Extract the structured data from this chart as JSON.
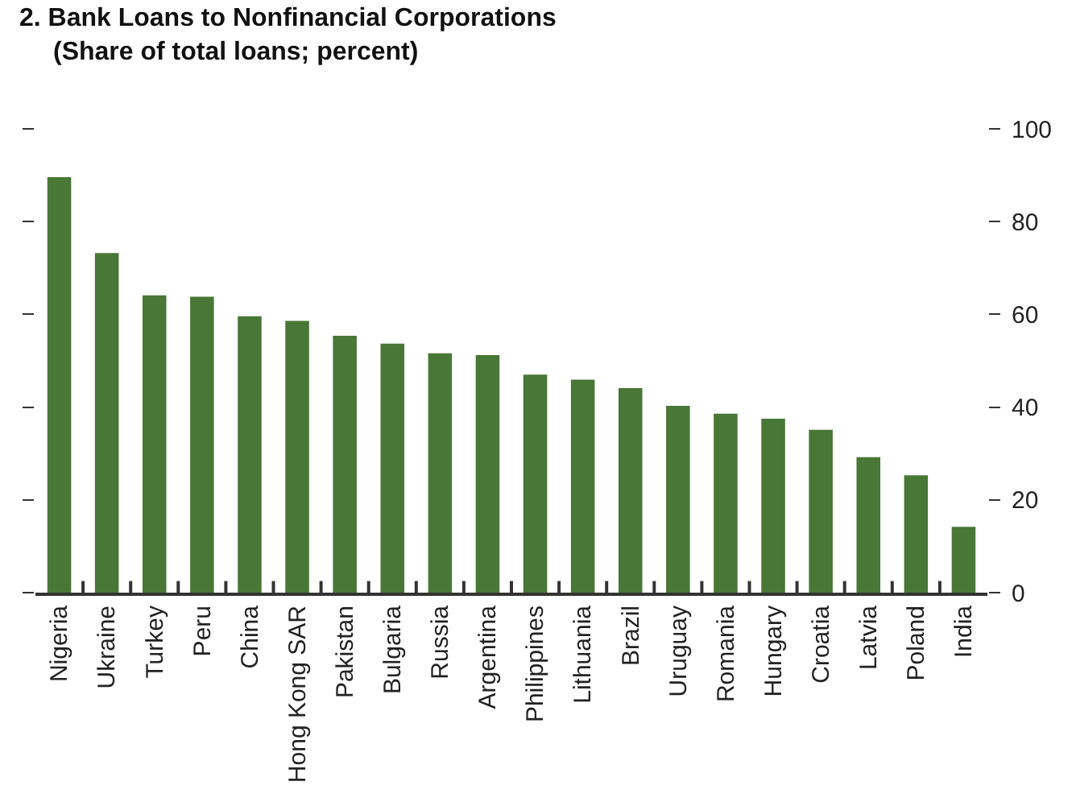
{
  "chart_data": {
    "type": "bar",
    "title": "2. Bank Loans to Nonfinancial Corporations",
    "subtitle": "(Share of total loans; percent)",
    "categories": [
      "Nigeria",
      "Ukraine",
      "Turkey",
      "Peru",
      "China",
      "Hong Kong SAR",
      "Pakistan",
      "Bulgaria",
      "Russia",
      "Argentina",
      "Philippines",
      "Lithuania",
      "Brazil",
      "Uruguay",
      "Romania",
      "Hungary",
      "Croatia",
      "Latvia",
      "Poland",
      "India"
    ],
    "values": [
      89.6,
      73.2,
      64.1,
      63.8,
      59.6,
      58.6,
      55.4,
      53.7,
      51.6,
      51.2,
      47.0,
      45.9,
      44.1,
      40.3,
      38.6,
      37.5,
      35.1,
      29.2,
      25.3,
      14.2
    ],
    "color": "#487736",
    "ylim": [
      0,
      100
    ],
    "yticks": [
      0,
      20,
      40,
      60,
      80,
      100
    ],
    "grid": false,
    "legend": false
  }
}
